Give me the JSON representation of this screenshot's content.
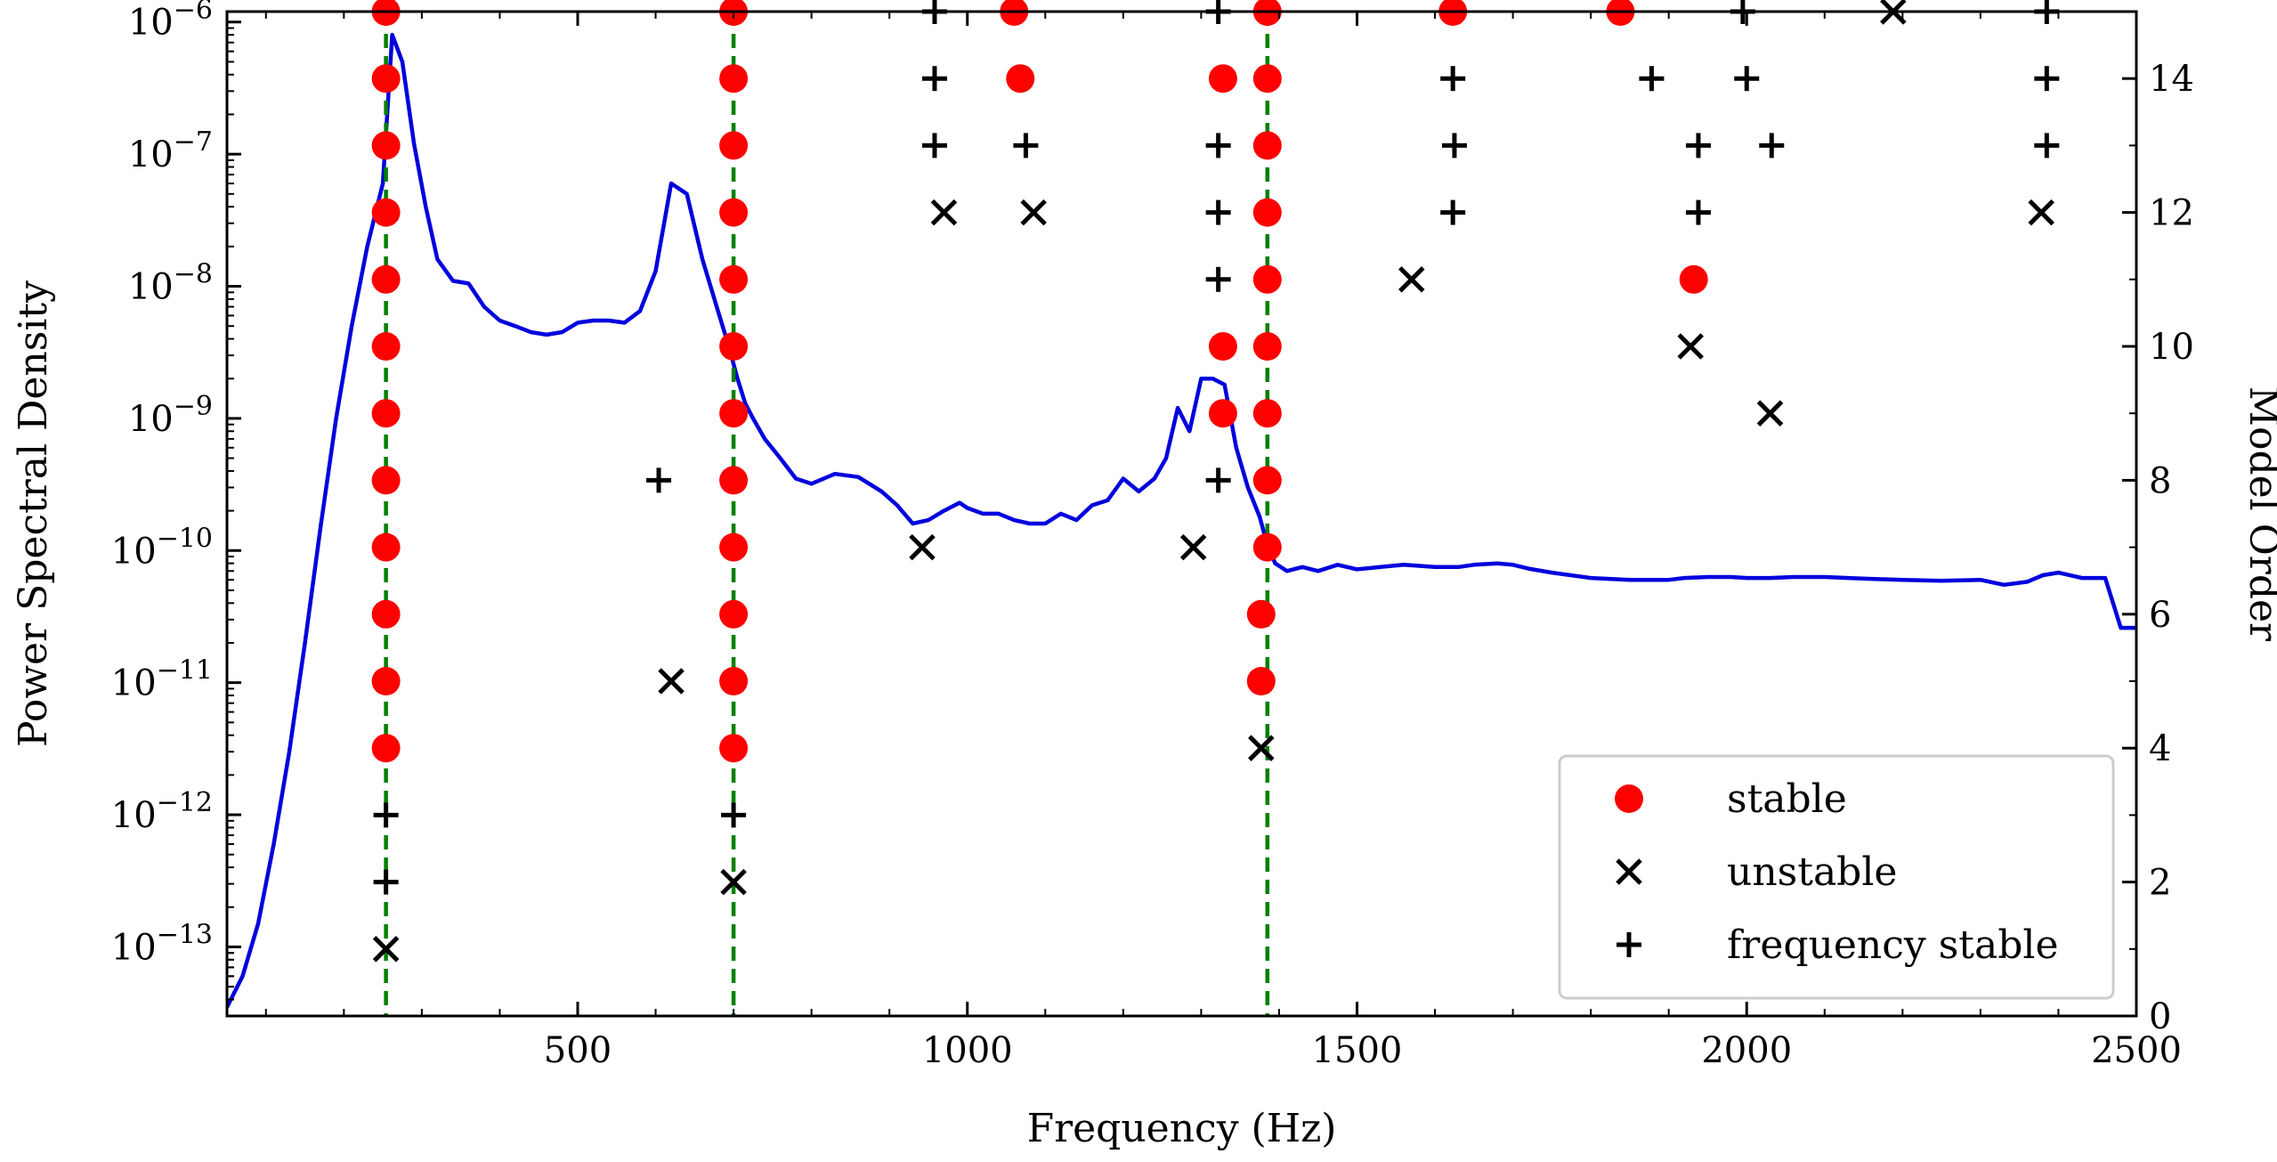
{
  "chart_data": {
    "type": "scatter",
    "title": "",
    "xlabel": "Frequency (Hz)",
    "ylabel_left": "Power Spectral Density",
    "ylabel_right": "Model Order",
    "xlim": [
      50,
      2500
    ],
    "xticks": [
      500,
      1000,
      1500,
      2000,
      2500
    ],
    "xtick_labels": [
      "500",
      "1000",
      "1500",
      "2000",
      "2500"
    ],
    "y_left_scale": "log",
    "y_left_lim": [
      3e-14,
      1.2e-06
    ],
    "y_left_ticks": [
      {
        "base": "10",
        "exp": "−6",
        "value": 1e-06
      },
      {
        "base": "10",
        "exp": "−7",
        "value": 1e-07
      },
      {
        "base": "10",
        "exp": "−8",
        "value": 1e-08
      },
      {
        "base": "10",
        "exp": "−9",
        "value": 1e-09
      },
      {
        "base": "10",
        "exp": "−10",
        "value": 1e-10
      },
      {
        "base": "10",
        "exp": "−11",
        "value": 1e-11
      },
      {
        "base": "10",
        "exp": "−12",
        "value": 1e-12
      },
      {
        "base": "10",
        "exp": "−13",
        "value": 1e-13
      }
    ],
    "y_right_lim": [
      0,
      15
    ],
    "y_right_ticks": [
      0,
      2,
      4,
      6,
      8,
      10,
      12,
      14
    ],
    "y_right_tick_labels": [
      "0",
      "2",
      "4",
      "6",
      "8",
      "10",
      "12",
      "14"
    ],
    "colors": {
      "psd": "#0000dd",
      "stable": "#ff0000",
      "marker": "#000000",
      "vline": "#008000"
    },
    "psd_series": {
      "name": "PSD",
      "x": [
        50,
        70,
        90,
        110,
        130,
        150,
        170,
        190,
        210,
        230,
        250,
        262,
        275,
        290,
        305,
        320,
        340,
        360,
        380,
        400,
        420,
        440,
        460,
        480,
        500,
        520,
        540,
        560,
        580,
        600,
        620,
        640,
        660,
        680,
        694,
        705,
        715,
        725,
        740,
        760,
        780,
        800,
        830,
        860,
        890,
        910,
        930,
        950,
        970,
        990,
        1000,
        1020,
        1040,
        1060,
        1080,
        1100,
        1120,
        1140,
        1160,
        1180,
        1200,
        1220,
        1240,
        1255,
        1270,
        1285,
        1300,
        1315,
        1330,
        1345,
        1360,
        1375,
        1385,
        1395,
        1410,
        1430,
        1450,
        1475,
        1500,
        1530,
        1560,
        1600,
        1630,
        1650,
        1680,
        1700,
        1720,
        1750,
        1800,
        1850,
        1900,
        1920,
        1950,
        1980,
        2000,
        2030,
        2060,
        2080,
        2100,
        2130,
        2160,
        2200,
        2250,
        2300,
        2330,
        2360,
        2380,
        2400,
        2430,
        2460,
        2480,
        2500
      ],
      "y": [
        3.5e-14,
        6e-14,
        1.5e-13,
        6e-13,
        3e-12,
        2e-11,
        1.5e-10,
        1e-09,
        5e-09,
        2e-08,
        6e-08,
        8e-07,
        5e-07,
        1.2e-07,
        4e-08,
        1.6e-08,
        1.1e-08,
        1.05e-08,
        7e-09,
        5.5e-09,
        5e-09,
        4.5e-09,
        4.3e-09,
        4.5e-09,
        5.3e-09,
        5.5e-09,
        5.5e-09,
        5.3e-09,
        6.5e-09,
        1.3e-08,
        6e-08,
        5e-08,
        1.6e-08,
        6.5e-09,
        3.5e-09,
        2e-09,
        1.3e-09,
        1e-09,
        7e-10,
        5e-10,
        3.5e-10,
        3.2e-10,
        3.8e-10,
        3.6e-10,
        2.8e-10,
        2.2e-10,
        1.6e-10,
        1.7e-10,
        2e-10,
        2.3e-10,
        2.1e-10,
        1.9e-10,
        1.9e-10,
        1.7e-10,
        1.6e-10,
        1.6e-10,
        1.9e-10,
        1.7e-10,
        2.2e-10,
        2.4e-10,
        3.5e-10,
        2.8e-10,
        3.5e-10,
        5e-10,
        1.2e-09,
        8e-10,
        2e-09,
        2e-09,
        1.8e-09,
        6e-10,
        3e-10,
        1.8e-10,
        1.1e-10,
        8e-11,
        7e-11,
        7.5e-11,
        7e-11,
        7.8e-11,
        7.2e-11,
        7.5e-11,
        7.8e-11,
        7.5e-11,
        7.5e-11,
        7.8e-11,
        8e-11,
        7.8e-11,
        7.3e-11,
        6.8e-11,
        6.2e-11,
        6e-11,
        6e-11,
        6.2e-11,
        6.3e-11,
        6.3e-11,
        6.2e-11,
        6.2e-11,
        6.3e-11,
        6.3e-11,
        6.3e-11,
        6.2e-11,
        6.1e-11,
        6e-11,
        5.9e-11,
        6e-11,
        5.5e-11,
        5.8e-11,
        6.5e-11,
        6.8e-11,
        6.2e-11,
        6.2e-11,
        2.6e-11,
        2.6e-11
      ]
    },
    "vlines_hz": [
      254,
      700,
      1385
    ],
    "legend": {
      "position": "lower right",
      "entries": [
        {
          "marker": "stable",
          "label": "stable"
        },
        {
          "marker": "unstable",
          "label": "unstable"
        },
        {
          "marker": "freq_stable",
          "label": "frequency stable"
        }
      ]
    },
    "series": [
      {
        "name": "stable",
        "points": [
          {
            "x": 254,
            "y": 15
          },
          {
            "x": 254,
            "y": 14
          },
          {
            "x": 254,
            "y": 13
          },
          {
            "x": 254,
            "y": 12
          },
          {
            "x": 254,
            "y": 11
          },
          {
            "x": 254,
            "y": 10
          },
          {
            "x": 254,
            "y": 9
          },
          {
            "x": 254,
            "y": 8
          },
          {
            "x": 254,
            "y": 7
          },
          {
            "x": 254,
            "y": 6
          },
          {
            "x": 254,
            "y": 5
          },
          {
            "x": 254,
            "y": 4
          },
          {
            "x": 700,
            "y": 15
          },
          {
            "x": 700,
            "y": 14
          },
          {
            "x": 700,
            "y": 13
          },
          {
            "x": 700,
            "y": 12
          },
          {
            "x": 700,
            "y": 11
          },
          {
            "x": 700,
            "y": 10
          },
          {
            "x": 700,
            "y": 9
          },
          {
            "x": 700,
            "y": 8
          },
          {
            "x": 700,
            "y": 7
          },
          {
            "x": 700,
            "y": 6
          },
          {
            "x": 700,
            "y": 5
          },
          {
            "x": 700,
            "y": 4
          },
          {
            "x": 1060,
            "y": 15
          },
          {
            "x": 1068,
            "y": 14
          },
          {
            "x": 1328,
            "y": 14
          },
          {
            "x": 1328,
            "y": 10
          },
          {
            "x": 1328,
            "y": 9
          },
          {
            "x": 1385,
            "y": 15
          },
          {
            "x": 1385,
            "y": 14
          },
          {
            "x": 1385,
            "y": 13
          },
          {
            "x": 1385,
            "y": 12
          },
          {
            "x": 1385,
            "y": 11
          },
          {
            "x": 1385,
            "y": 10
          },
          {
            "x": 1385,
            "y": 9
          },
          {
            "x": 1385,
            "y": 8
          },
          {
            "x": 1385,
            "y": 7
          },
          {
            "x": 1377,
            "y": 6
          },
          {
            "x": 1377,
            "y": 5
          },
          {
            "x": 1623,
            "y": 15
          },
          {
            "x": 1838,
            "y": 15
          },
          {
            "x": 1932,
            "y": 11
          }
        ]
      },
      {
        "name": "unstable",
        "points": [
          {
            "x": 254,
            "y": 1
          },
          {
            "x": 700,
            "y": 2
          },
          {
            "x": 620,
            "y": 5
          },
          {
            "x": 942,
            "y": 7
          },
          {
            "x": 970,
            "y": 12
          },
          {
            "x": 1085,
            "y": 12
          },
          {
            "x": 1290,
            "y": 7
          },
          {
            "x": 1377,
            "y": 4
          },
          {
            "x": 1570,
            "y": 11
          },
          {
            "x": 1928,
            "y": 10
          },
          {
            "x": 2030,
            "y": 9
          },
          {
            "x": 2188,
            "y": 15
          },
          {
            "x": 2378,
            "y": 12
          }
        ]
      },
      {
        "name": "frequency stable",
        "points": [
          {
            "x": 254,
            "y": 3
          },
          {
            "x": 254,
            "y": 2
          },
          {
            "x": 700,
            "y": 3
          },
          {
            "x": 604,
            "y": 8
          },
          {
            "x": 958,
            "y": 15
          },
          {
            "x": 958,
            "y": 14
          },
          {
            "x": 958,
            "y": 13
          },
          {
            "x": 1075,
            "y": 13
          },
          {
            "x": 1322,
            "y": 15
          },
          {
            "x": 1322,
            "y": 13
          },
          {
            "x": 1322,
            "y": 12
          },
          {
            "x": 1322,
            "y": 11
          },
          {
            "x": 1322,
            "y": 8
          },
          {
            "x": 1623,
            "y": 14
          },
          {
            "x": 1625,
            "y": 13
          },
          {
            "x": 1623,
            "y": 12
          },
          {
            "x": 1878,
            "y": 14
          },
          {
            "x": 1995,
            "y": 15
          },
          {
            "x": 2000,
            "y": 14
          },
          {
            "x": 1938,
            "y": 13
          },
          {
            "x": 2032,
            "y": 13
          },
          {
            "x": 1938,
            "y": 12
          },
          {
            "x": 2385,
            "y": 15
          },
          {
            "x": 2385,
            "y": 14
          },
          {
            "x": 2385,
            "y": 13
          }
        ]
      }
    ]
  }
}
